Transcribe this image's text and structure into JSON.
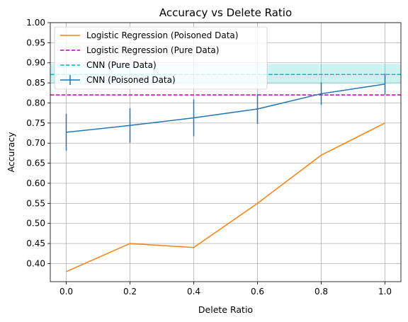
{
  "chart_data": {
    "type": "line",
    "title": "Accuracy vs Delete Ratio",
    "xlabel": "Delete Ratio",
    "ylabel": "Accuracy",
    "xlim": [
      -0.05,
      1.05
    ],
    "ylim": [
      0.355,
      1.0
    ],
    "x_ticks": [
      0.0,
      0.2,
      0.4,
      0.6,
      0.8,
      1.0
    ],
    "x_tick_labels": [
      "0.0",
      "0.2",
      "0.4",
      "0.6",
      "0.8",
      "1.0"
    ],
    "y_ticks": [
      0.4,
      0.45,
      0.5,
      0.55,
      0.6,
      0.65,
      0.7,
      0.75,
      0.8,
      0.85,
      0.9,
      0.95,
      1.0
    ],
    "y_tick_labels": [
      "0.40",
      "0.45",
      "0.50",
      "0.55",
      "0.60",
      "0.65",
      "0.70",
      "0.75",
      "0.80",
      "0.85",
      "0.90",
      "0.95",
      "1.00"
    ],
    "grid": true,
    "legend_position": "top-left",
    "x": [
      0.0,
      0.2,
      0.4,
      0.6,
      0.8,
      1.0
    ],
    "series": [
      {
        "name": "Logistic Regression (Poisoned Data)",
        "style": "line",
        "color": "#ff7f0e",
        "values": [
          0.38,
          0.45,
          0.44,
          0.55,
          0.67,
          0.75
        ]
      },
      {
        "name": "Logistic Regression (Pure Data)",
        "style": "hline-dashed",
        "color": "#bf00bf",
        "value": 0.82
      },
      {
        "name": "CNN (Pure Data)",
        "style": "hline-dashed-band",
        "color": "#00bfbf",
        "value": 0.871,
        "band": [
          0.848,
          0.897
        ]
      },
      {
        "name": "CNN (Poisoned Data)",
        "style": "errorbar",
        "color": "#1f77b4",
        "values": [
          0.727,
          0.744,
          0.763,
          0.785,
          0.823,
          0.847
        ],
        "errors": [
          0.046,
          0.043,
          0.046,
          0.037,
          0.028,
          0.026
        ]
      }
    ]
  }
}
